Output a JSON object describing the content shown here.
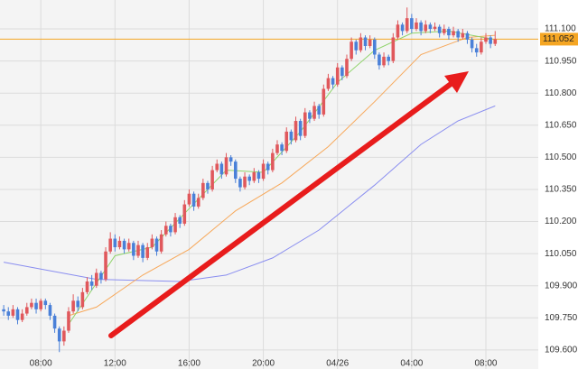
{
  "chart_data": {
    "type": "candlestick",
    "xlim": [
      -0.8,
      115.3
    ],
    "ylim": [
      109.511,
      111.235
    ],
    "xticks": [
      {
        "value": 8,
        "label": "08:00"
      },
      {
        "value": 24,
        "label": "12:00"
      },
      {
        "value": 40,
        "label": "16:00"
      },
      {
        "value": 56,
        "label": "20:00"
      },
      {
        "value": 72,
        "label": "04/26"
      },
      {
        "value": 88,
        "label": "04:00"
      },
      {
        "value": 104,
        "label": "08:00"
      }
    ],
    "yticks": [
      {
        "value": 109.6,
        "label": "109.600"
      },
      {
        "value": 109.75,
        "label": "109.750"
      },
      {
        "value": 109.9,
        "label": "109.900"
      },
      {
        "value": 110.05,
        "label": "110.050"
      },
      {
        "value": 110.2,
        "label": "110.200"
      },
      {
        "value": 110.35,
        "label": "110.350"
      },
      {
        "value": 110.5,
        "label": "110.500"
      },
      {
        "value": 110.65,
        "label": "110.650"
      },
      {
        "value": 110.8,
        "label": "110.800"
      },
      {
        "value": 110.95,
        "label": "110.950"
      },
      {
        "value": 111.1,
        "label": "111.100"
      }
    ],
    "grid": true,
    "up_color": "#e0585c",
    "down_color": "#4a80d8",
    "last_price": 111.052,
    "last_price_color": "#f5a623",
    "candles": [
      [
        109.79,
        109.81,
        109.76,
        109.78
      ],
      [
        109.78,
        109.8,
        109.74,
        109.76
      ],
      [
        109.76,
        109.81,
        109.75,
        109.79
      ],
      [
        109.79,
        109.8,
        109.72,
        109.74
      ],
      [
        109.74,
        109.79,
        109.73,
        109.77
      ],
      [
        109.77,
        109.82,
        109.76,
        109.8
      ],
      [
        109.8,
        109.84,
        109.79,
        109.82
      ],
      [
        109.82,
        109.84,
        109.77,
        109.79
      ],
      [
        109.79,
        109.84,
        109.78,
        109.83
      ],
      [
        109.83,
        109.84,
        109.79,
        109.81
      ],
      [
        109.81,
        109.82,
        109.74,
        109.76
      ],
      [
        109.76,
        109.77,
        109.68,
        109.7
      ],
      [
        109.7,
        109.71,
        109.59,
        109.64
      ],
      [
        109.64,
        109.71,
        109.62,
        109.69
      ],
      [
        109.69,
        109.8,
        109.68,
        109.78
      ],
      [
        109.78,
        109.86,
        109.77,
        109.83
      ],
      [
        109.83,
        109.85,
        109.78,
        109.8
      ],
      [
        109.8,
        109.89,
        109.79,
        109.87
      ],
      [
        109.87,
        109.94,
        109.86,
        109.92
      ],
      [
        109.92,
        109.95,
        109.88,
        109.9
      ],
      [
        109.9,
        109.98,
        109.89,
        109.96
      ],
      [
        109.96,
        109.97,
        109.91,
        109.93
      ],
      [
        109.93,
        110.08,
        109.92,
        110.06
      ],
      [
        110.06,
        110.15,
        110.05,
        110.12
      ],
      [
        110.12,
        110.14,
        110.06,
        110.08
      ],
      [
        110.08,
        110.13,
        110.07,
        110.11
      ],
      [
        110.11,
        110.12,
        110.05,
        110.07
      ],
      [
        110.07,
        110.12,
        110.06,
        110.1
      ],
      [
        110.1,
        110.11,
        110.02,
        110.04
      ],
      [
        110.04,
        110.11,
        110.03,
        110.09
      ],
      [
        110.09,
        110.1,
        110.01,
        110.03
      ],
      [
        110.03,
        110.1,
        110.02,
        110.08
      ],
      [
        110.08,
        110.14,
        110.07,
        110.12
      ],
      [
        110.12,
        110.13,
        110.04,
        110.06
      ],
      [
        110.06,
        110.16,
        110.05,
        110.14
      ],
      [
        110.14,
        110.2,
        110.13,
        110.18
      ],
      [
        110.18,
        110.19,
        110.13,
        110.15
      ],
      [
        110.15,
        110.24,
        110.14,
        110.22
      ],
      [
        110.22,
        110.23,
        110.17,
        110.19
      ],
      [
        110.19,
        110.3,
        110.18,
        110.28
      ],
      [
        110.28,
        110.35,
        110.27,
        110.33
      ],
      [
        110.33,
        110.34,
        110.25,
        110.27
      ],
      [
        110.27,
        110.33,
        110.26,
        110.31
      ],
      [
        110.31,
        110.4,
        110.3,
        110.38
      ],
      [
        110.38,
        110.39,
        110.33,
        110.35
      ],
      [
        110.35,
        110.46,
        110.34,
        110.44
      ],
      [
        110.44,
        110.49,
        110.43,
        110.47
      ],
      [
        110.47,
        110.48,
        110.4,
        110.42
      ],
      [
        110.42,
        110.52,
        110.41,
        110.5
      ],
      [
        110.5,
        110.51,
        110.46,
        110.48
      ],
      [
        110.48,
        110.49,
        110.38,
        110.4
      ],
      [
        110.4,
        110.41,
        110.34,
        110.36
      ],
      [
        110.36,
        110.43,
        110.35,
        110.41
      ],
      [
        110.41,
        110.42,
        110.37,
        110.39
      ],
      [
        110.39,
        110.45,
        110.38,
        110.43
      ],
      [
        110.43,
        110.44,
        110.38,
        110.4
      ],
      [
        110.4,
        110.49,
        110.39,
        110.47
      ],
      [
        110.47,
        110.48,
        110.42,
        110.44
      ],
      [
        110.44,
        110.54,
        110.43,
        110.52
      ],
      [
        110.52,
        110.58,
        110.51,
        110.56
      ],
      [
        110.56,
        110.57,
        110.51,
        110.53
      ],
      [
        110.53,
        110.64,
        110.52,
        110.62
      ],
      [
        110.62,
        110.63,
        110.56,
        110.58
      ],
      [
        110.58,
        110.69,
        110.57,
        110.67
      ],
      [
        110.67,
        110.68,
        110.58,
        110.6
      ],
      [
        110.6,
        110.73,
        110.59,
        110.71
      ],
      [
        110.71,
        110.72,
        110.66,
        110.68
      ],
      [
        110.68,
        110.76,
        110.67,
        110.74
      ],
      [
        110.74,
        110.75,
        110.68,
        110.7
      ],
      [
        110.7,
        110.84,
        110.69,
        110.82
      ],
      [
        110.82,
        110.89,
        110.81,
        110.87
      ],
      [
        110.87,
        110.88,
        110.82,
        110.84
      ],
      [
        110.84,
        110.94,
        110.83,
        110.92
      ],
      [
        110.92,
        110.93,
        110.86,
        110.88
      ],
      [
        110.88,
        110.98,
        110.87,
        110.96
      ],
      [
        110.96,
        111.06,
        110.95,
        111.04
      ],
      [
        111.04,
        111.05,
        110.98,
        111.0
      ],
      [
        111.0,
        111.08,
        110.99,
        111.06
      ],
      [
        111.06,
        111.07,
        111.0,
        111.02
      ],
      [
        111.02,
        111.07,
        111.01,
        111.05
      ],
      [
        111.05,
        111.06,
        110.96,
        110.98
      ],
      [
        110.98,
        110.99,
        110.91,
        110.93
      ],
      [
        110.93,
        110.99,
        110.92,
        110.97
      ],
      [
        110.97,
        110.98,
        110.93,
        110.95
      ],
      [
        110.95,
        111.08,
        110.94,
        111.06
      ],
      [
        111.06,
        111.14,
        111.05,
        111.12
      ],
      [
        111.12,
        111.13,
        111.07,
        111.09
      ],
      [
        111.09,
        111.2,
        111.08,
        111.15
      ],
      [
        111.15,
        111.17,
        111.08,
        111.1
      ],
      [
        111.1,
        111.15,
        111.09,
        111.13
      ],
      [
        111.13,
        111.14,
        111.07,
        111.09
      ],
      [
        111.09,
        111.14,
        111.08,
        111.12
      ],
      [
        111.12,
        111.13,
        111.08,
        111.1
      ],
      [
        111.1,
        111.13,
        111.09,
        111.11
      ],
      [
        111.11,
        111.12,
        111.06,
        111.08
      ],
      [
        111.08,
        111.12,
        111.07,
        111.1
      ],
      [
        111.1,
        111.11,
        111.05,
        111.07
      ],
      [
        111.07,
        111.11,
        111.06,
        111.09
      ],
      [
        111.09,
        111.1,
        111.04,
        111.06
      ],
      [
        111.06,
        111.1,
        111.05,
        111.08
      ],
      [
        111.08,
        111.09,
        111.03,
        111.05
      ],
      [
        111.05,
        111.06,
        110.99,
        111.01
      ],
      [
        111.01,
        111.03,
        110.97,
        110.99
      ],
      [
        110.99,
        111.06,
        110.98,
        111.04
      ],
      [
        111.04,
        111.08,
        111.03,
        111.06
      ],
      [
        111.06,
        111.07,
        111.01,
        111.03
      ],
      [
        111.03,
        111.09,
        111.02,
        111.052
      ]
    ],
    "moving_averages": [
      {
        "color": "#8a8ef0",
        "x": [
          0,
          20,
          38,
          48,
          58,
          68,
          80,
          90,
          98,
          106
        ],
        "values": [
          110.01,
          109.93,
          109.92,
          109.95,
          110.03,
          110.16,
          110.37,
          110.56,
          110.67,
          110.74
        ]
      },
      {
        "color": "#f7a85a",
        "x": [
          14,
          20,
          30,
          40,
          50,
          60,
          70,
          80,
          90,
          100,
          106
        ],
        "values": [
          109.76,
          109.8,
          109.95,
          110.07,
          110.25,
          110.38,
          110.55,
          110.76,
          110.98,
          111.06,
          111.07
        ]
      },
      {
        "color": "#8fd36a",
        "x": [
          14,
          24,
          32,
          40,
          48,
          56,
          64,
          72,
          80,
          88,
          96,
          106
        ],
        "values": [
          109.72,
          110.04,
          110.08,
          110.26,
          110.44,
          110.43,
          110.62,
          110.85,
          111.0,
          111.08,
          111.09,
          111.05
        ]
      }
    ]
  }
}
